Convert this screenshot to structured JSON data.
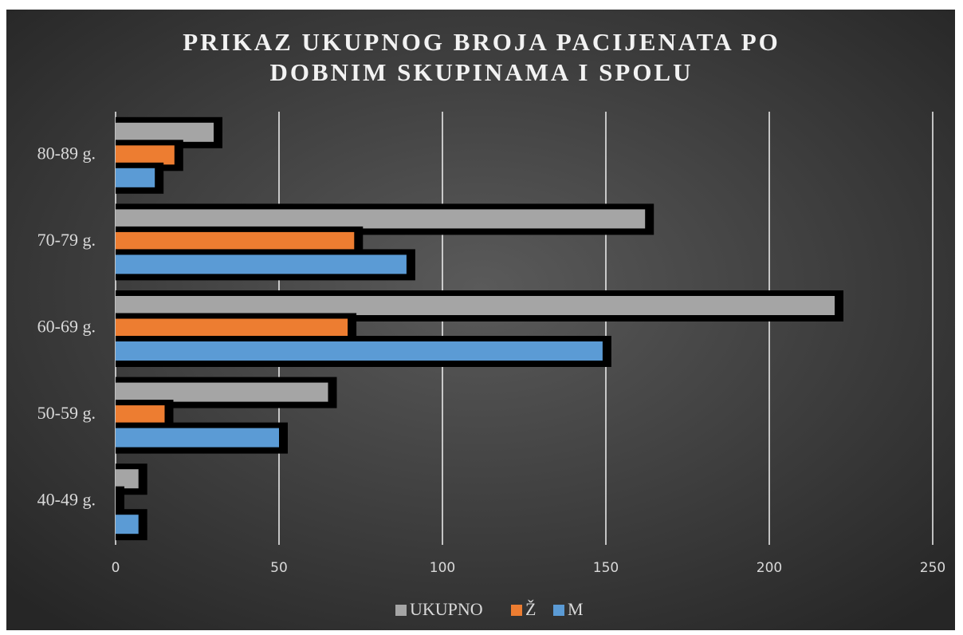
{
  "chart_data": {
    "type": "bar",
    "orientation": "horizontal",
    "title": "PRIKAZ UKUPNOG BROJA PACIJENATA PO DOBNIM SKUPINAMA I SPOLU",
    "categories": [
      "40-49 g.",
      "50-59 g.",
      "60-69 g.",
      "70-79 g.",
      "80-89 g."
    ],
    "series": [
      {
        "name": "UKUPNO",
        "color": "#a5a5a5",
        "values": [
          7,
          65,
          220,
          162,
          30
        ]
      },
      {
        "name": "Ž",
        "color": "#ed7d31",
        "values": [
          0,
          15,
          71,
          73,
          18
        ]
      },
      {
        "name": "M",
        "color": "#5b9bd5",
        "values": [
          7,
          50,
          149,
          89,
          12
        ]
      }
    ],
    "xlim": [
      0,
      250
    ],
    "xticks": [
      0,
      50,
      100,
      150,
      200,
      250
    ],
    "grid": true,
    "legend": "bottom"
  }
}
